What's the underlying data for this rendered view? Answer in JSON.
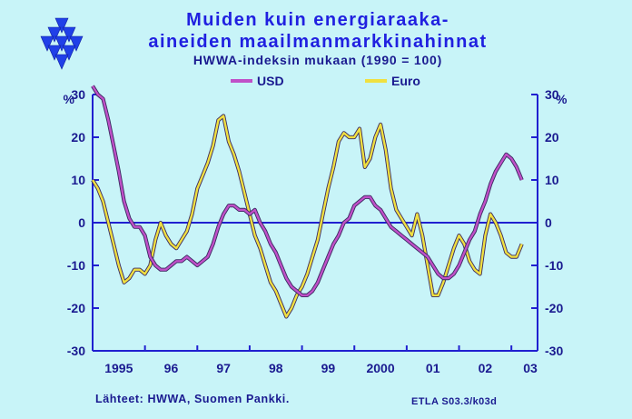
{
  "chart_data": {
    "type": "line",
    "title_line1": "Muiden kuin energiaraaka-",
    "title_line2": "aineiden maailmanmarkkinahinnat",
    "subtitle": "HWWA-indeksin mukaan (1990 = 100)",
    "ylabel": "%",
    "ylim": [
      -30,
      30
    ],
    "yticks": [
      30,
      20,
      10,
      0,
      -10,
      -20,
      -30
    ],
    "xlim": [
      1995.0,
      2003.5
    ],
    "xticks": [
      {
        "x": 1995.5,
        "label": "1995"
      },
      {
        "x": 1996.5,
        "label": "96"
      },
      {
        "x": 1997.5,
        "label": "97"
      },
      {
        "x": 1998.5,
        "label": "98"
      },
      {
        "x": 1999.5,
        "label": "99"
      },
      {
        "x": 2000.5,
        "label": "2000"
      },
      {
        "x": 2001.5,
        "label": "01"
      },
      {
        "x": 2002.5,
        "label": "02"
      },
      {
        "x": 2003.5,
        "label": "03"
      }
    ],
    "series": [
      {
        "name": "USD",
        "color": "#c050c8",
        "x": [
          1995.0,
          1995.1,
          1995.2,
          1995.3,
          1995.4,
          1995.5,
          1995.6,
          1995.7,
          1995.8,
          1995.9,
          1996.0,
          1996.1,
          1996.2,
          1996.3,
          1996.4,
          1996.5,
          1996.6,
          1996.7,
          1996.8,
          1996.9,
          1997.0,
          1997.1,
          1997.2,
          1997.3,
          1997.4,
          1997.5,
          1997.6,
          1997.7,
          1997.8,
          1997.9,
          1998.0,
          1998.1,
          1998.2,
          1998.3,
          1998.4,
          1998.5,
          1998.6,
          1998.7,
          1998.8,
          1998.9,
          1999.0,
          1999.1,
          1999.2,
          1999.3,
          1999.4,
          1999.5,
          1999.6,
          1999.7,
          1999.8,
          1999.9,
          2000.0,
          2000.1,
          2000.2,
          2000.3,
          2000.4,
          2000.5,
          2000.6,
          2000.7,
          2000.8,
          2000.9,
          2001.0,
          2001.1,
          2001.2,
          2001.3,
          2001.4,
          2001.5,
          2001.6,
          2001.7,
          2001.8,
          2001.9,
          2002.0,
          2002.1,
          2002.2,
          2002.3,
          2002.4,
          2002.5,
          2002.6,
          2002.7,
          2002.8,
          2002.9,
          2003.0,
          2003.1,
          2003.2
        ],
        "values": [
          32,
          30,
          29,
          24,
          18,
          12,
          5,
          1,
          -1,
          -1,
          -3,
          -8,
          -10,
          -11,
          -11,
          -10,
          -9,
          -9,
          -8,
          -9,
          -10,
          -9,
          -8,
          -5,
          -1,
          2,
          4,
          4,
          3,
          3,
          2,
          3,
          0,
          -2,
          -5,
          -7,
          -10,
          -13,
          -15,
          -16,
          -17,
          -17,
          -16,
          -14,
          -11,
          -8,
          -5,
          -3,
          0,
          1,
          4,
          5,
          6,
          6,
          4,
          3,
          1,
          -1,
          -2,
          -3,
          -4,
          -5,
          -6,
          -7,
          -8,
          -10,
          -12,
          -13,
          -13,
          -12,
          -10,
          -7,
          -4,
          -2,
          2,
          5,
          9,
          12,
          14,
          16,
          15,
          13,
          10
        ]
      },
      {
        "name": "Euro",
        "color": "#f0e040",
        "x": [
          1995.0,
          1995.1,
          1995.2,
          1995.3,
          1995.4,
          1995.5,
          1995.6,
          1995.7,
          1995.8,
          1995.9,
          1996.0,
          1996.1,
          1996.2,
          1996.3,
          1996.4,
          1996.5,
          1996.6,
          1996.7,
          1996.8,
          1996.9,
          1997.0,
          1997.1,
          1997.2,
          1997.3,
          1997.4,
          1997.5,
          1997.6,
          1997.7,
          1997.8,
          1997.9,
          1998.0,
          1998.1,
          1998.2,
          1998.3,
          1998.4,
          1998.5,
          1998.6,
          1998.7,
          1998.8,
          1998.9,
          1999.0,
          1999.1,
          1999.2,
          1999.3,
          1999.4,
          1999.5,
          1999.6,
          1999.7,
          1999.8,
          1999.9,
          2000.0,
          2000.1,
          2000.2,
          2000.3,
          2000.4,
          2000.5,
          2000.6,
          2000.7,
          2000.8,
          2000.9,
          2001.0,
          2001.1,
          2001.2,
          2001.3,
          2001.4,
          2001.5,
          2001.6,
          2001.7,
          2001.8,
          2001.9,
          2002.0,
          2002.1,
          2002.2,
          2002.3,
          2002.4,
          2002.5,
          2002.6,
          2002.7,
          2002.8,
          2002.9,
          2003.0,
          2003.1,
          2003.2
        ],
        "values": [
          10,
          8,
          5,
          0,
          -5,
          -10,
          -14,
          -13,
          -11,
          -11,
          -12,
          -10,
          -4,
          0,
          -3,
          -5,
          -6,
          -4,
          -2,
          2,
          8,
          11,
          14,
          18,
          24,
          25,
          19,
          16,
          12,
          7,
          2,
          -3,
          -6,
          -10,
          -14,
          -16,
          -19,
          -22,
          -20,
          -17,
          -15,
          -12,
          -8,
          -4,
          2,
          8,
          13,
          19,
          21,
          20,
          20,
          22,
          13,
          15,
          20,
          23,
          17,
          8,
          3,
          1,
          -1,
          -3,
          2,
          -3,
          -10,
          -17,
          -17,
          -14,
          -10,
          -6,
          -3,
          -5,
          -9,
          -11,
          -12,
          -3,
          2,
          0,
          -3,
          -7,
          -8,
          -8,
          -5
        ]
      }
    ],
    "legend": {
      "placement": "top-center"
    },
    "zero_line": true
  },
  "footer": {
    "sources": "Lähteet:  HWWA, Suomen Pankki.",
    "code": "ETLA S03.3/k03d"
  },
  "logo": {
    "name": "ETLA logo"
  }
}
